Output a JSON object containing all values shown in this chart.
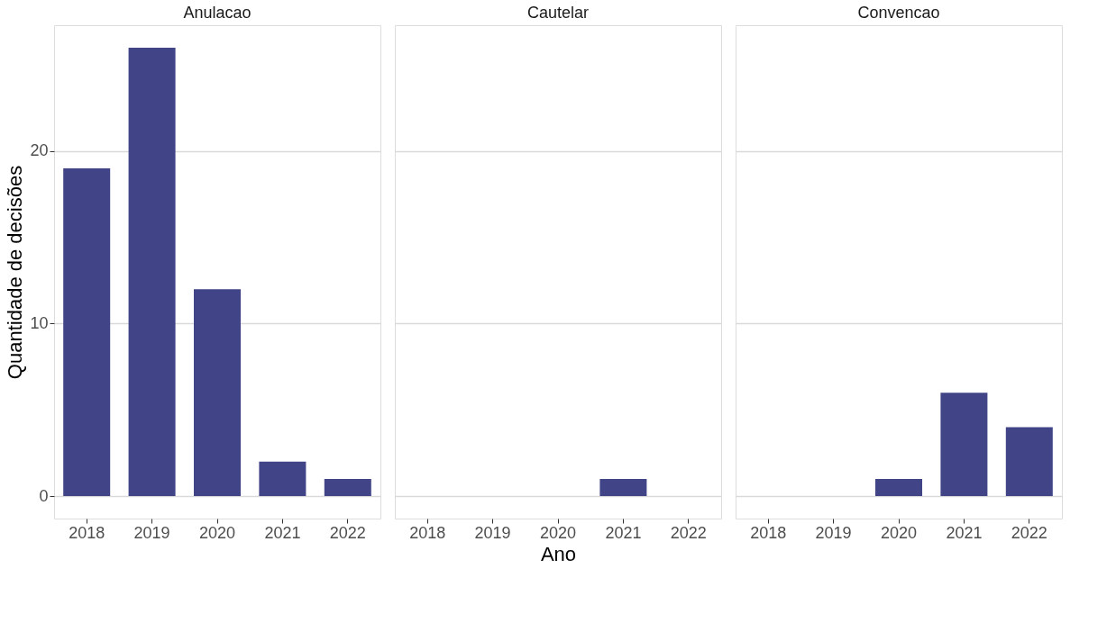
{
  "chart_data": [
    {
      "type": "bar",
      "title": "Anulacao",
      "ylabel": "Quantidade de decisões",
      "categories": [
        "2018",
        "2019",
        "2020",
        "2021",
        "2022"
      ],
      "values": [
        19,
        26,
        12,
        2,
        1
      ],
      "color": "#414487",
      "ylim": [
        -1.3,
        27.3
      ],
      "yticks": [
        0,
        10,
        20
      ],
      "grid": "y"
    },
    {
      "type": "bar",
      "title": "Cautelar",
      "xlabel": "Ano",
      "categories": [
        "2018",
        "2019",
        "2020",
        "2021",
        "2022"
      ],
      "values": [
        null,
        null,
        null,
        1,
        null
      ],
      "color": "#414487",
      "ylim": [
        -1.3,
        27.3
      ],
      "yticks": [
        0,
        10,
        20
      ],
      "grid": "y",
      "tick_labels": "x"
    },
    {
      "type": "bar",
      "title": "Convencao",
      "categories": [
        "2018",
        "2019",
        "2020",
        "2021",
        "2022"
      ],
      "values": [
        null,
        null,
        1,
        6,
        4
      ],
      "color": "#414487",
      "ylim": [
        -1.3,
        27.3
      ],
      "yticks": [
        0,
        10,
        20
      ],
      "grid": "y",
      "tick_labels": "x"
    }
  ]
}
